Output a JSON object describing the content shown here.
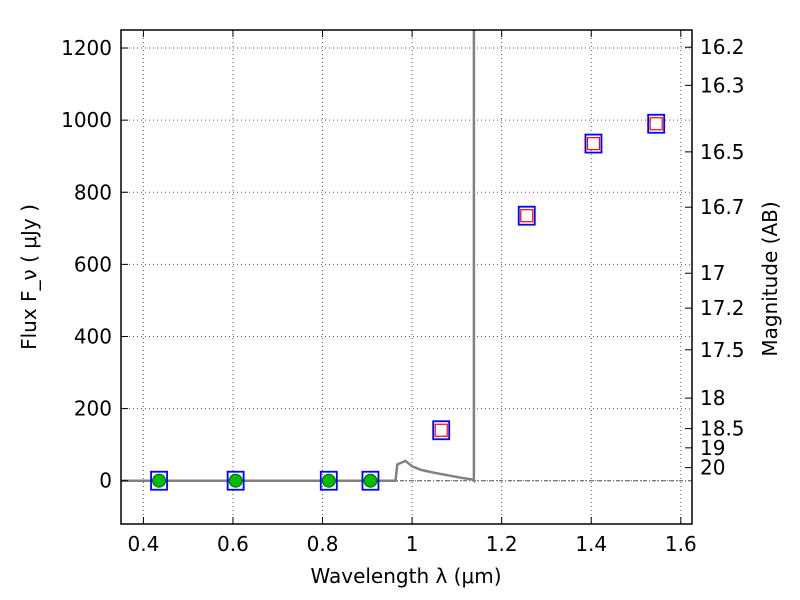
{
  "chart_data": {
    "type": "scatter",
    "xlabel": "Wavelength  λ (μm)",
    "ylabel": "Flux  F_ν  ( μJy )",
    "y2label": "Magnitude (AB)",
    "xlim": [
      0.35,
      1.625
    ],
    "ylim": [
      -120,
      1250
    ],
    "grid": true,
    "x_ticks": [
      0.4,
      0.6,
      0.8,
      1.0,
      1.2,
      1.4,
      1.6
    ],
    "x_tick_labels": [
      "0.4",
      "0.6",
      "0.8",
      "1",
      "1.2",
      "1.4",
      "1.6"
    ],
    "y_ticks": [
      0,
      200,
      400,
      600,
      800,
      1000,
      1200
    ],
    "y_tick_labels": [
      "0",
      "200",
      "400",
      "600",
      "800",
      "1000",
      "1200"
    ],
    "magnitude_ticks": [
      "16.2",
      "16.3",
      "16.5",
      "16.7",
      "17",
      "17.2",
      "17.5",
      "18",
      "18.5",
      "19",
      "20"
    ],
    "series": [
      {
        "marker": "blue-open-square",
        "color": "#0000ff",
        "points": [
          {
            "x": 0.435,
            "y": 0
          },
          {
            "x": 0.606,
            "y": 0
          },
          {
            "x": 0.814,
            "y": 0
          },
          {
            "x": 0.907,
            "y": 0
          },
          {
            "x": 1.065,
            "y": 140
          },
          {
            "x": 1.256,
            "y": 735
          },
          {
            "x": 1.405,
            "y": 935
          },
          {
            "x": 1.545,
            "y": 990
          }
        ]
      },
      {
        "marker": "red-open-square",
        "color": "#ff0000",
        "points": [
          {
            "x": 1.065,
            "y": 140
          },
          {
            "x": 1.256,
            "y": 735
          },
          {
            "x": 1.405,
            "y": 935
          },
          {
            "x": 1.545,
            "y": 990
          }
        ]
      },
      {
        "marker": "green-circle",
        "color": "#00bb00",
        "points": [
          {
            "x": 0.435,
            "y": 0
          },
          {
            "x": 0.606,
            "y": 0
          },
          {
            "x": 0.814,
            "y": 0
          },
          {
            "x": 0.907,
            "y": 0
          }
        ]
      },
      {
        "marker": "gray-line",
        "color": "#808080",
        "points": [
          {
            "x": 0.35,
            "y": 0
          },
          {
            "x": 0.963,
            "y": 0
          },
          {
            "x": 0.967,
            "y": 45
          },
          {
            "x": 0.985,
            "y": 55
          },
          {
            "x": 1.0,
            "y": 40
          },
          {
            "x": 1.02,
            "y": 30
          },
          {
            "x": 1.05,
            "y": 22
          },
          {
            "x": 1.08,
            "y": 15
          },
          {
            "x": 1.11,
            "y": 8
          },
          {
            "x": 1.135,
            "y": 3
          },
          {
            "x": 1.138,
            "y": 0
          },
          {
            "x": 1.138,
            "y": 1250
          }
        ]
      }
    ]
  }
}
